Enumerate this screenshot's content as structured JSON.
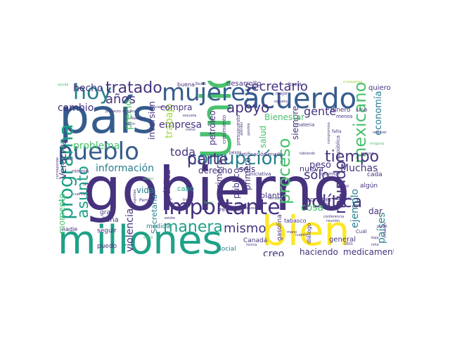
{
  "palette": {
    "purple": "#46327e",
    "darkpurple": "#482173",
    "blue": "#365c8d",
    "teal": "#277f8e",
    "green": "#1fa187",
    "lightgreen": "#4ac16d",
    "lime": "#a0da39",
    "yellow": "#fde725"
  },
  "words": [
    {
      "text": "gobierno",
      "color": "#46327e"
    },
    {
      "text": "Unidos",
      "color": "#4ac16d"
    },
    {
      "text": "país",
      "color": "#365c8d"
    },
    {
      "text": "millones",
      "color": "#1fa187"
    },
    {
      "text": "bien",
      "color": "#fde725"
    },
    {
      "text": "acuerdo",
      "color": "#365c8d"
    },
    {
      "text": "mujeres",
      "color": "#365c8d"
    },
    {
      "text": "pueblo",
      "color": "#365c8d"
    },
    {
      "text": "corrupción",
      "color": "#277f8e"
    },
    {
      "text": "importante",
      "color": "#46327e"
    },
    {
      "text": "política",
      "color": "#46327e"
    },
    {
      "text": "hoy",
      "color": "#277f8e"
    },
    {
      "text": "tratado",
      "color": "#46327e"
    },
    {
      "text": "mexicano",
      "color": "#4ac16d"
    },
    {
      "text": "secretario",
      "color": "#46327e"
    },
    {
      "text": "parte",
      "color": "#46327e"
    },
    {
      "text": "tiempo",
      "color": "#46327e"
    },
    {
      "text": "manera",
      "color": "#1fa187"
    },
    {
      "text": "mismo",
      "color": "#46327e"
    },
    {
      "text": "apoyo",
      "color": "#46327e"
    },
    {
      "text": "programa",
      "color": "#1fa187"
    },
    {
      "text": "asunto",
      "color": "#1fa187"
    },
    {
      "text": "proceso",
      "color": "#4ac16d"
    },
    {
      "text": "mundo",
      "color": "#46327e"
    },
    {
      "text": "años",
      "color": "#46327e"
    },
    {
      "text": "hecho",
      "color": "#46327e"
    },
    {
      "text": "cambio",
      "color": "#46327e"
    },
    {
      "text": "toda",
      "color": "#46327e"
    },
    {
      "text": "gente",
      "color": "#46327e"
    },
    {
      "text": "sólo",
      "color": "#46327e"
    },
    {
      "text": "empresa",
      "color": "#46327e"
    },
    {
      "text": "problema",
      "color": "#4ac16d"
    },
    {
      "text": "información",
      "color": "#277f8e"
    },
    {
      "text": "Veracruz",
      "color": "#46327e"
    },
    {
      "text": "trabajo",
      "color": "#a0da39"
    },
    {
      "text": "precio",
      "color": "#4ac16d"
    },
    {
      "text": "inversión",
      "color": "#46327e"
    },
    {
      "text": "compra",
      "color": "#46327e"
    },
    {
      "text": "desarrollo",
      "color": "#46327e"
    },
    {
      "text": "economía",
      "color": "#277f8e"
    },
    {
      "text": "cosa",
      "color": "#4ac16d"
    },
    {
      "text": "peso",
      "color": "#46327e"
    },
    {
      "text": "países",
      "color": "#277f8e"
    },
    {
      "text": "ejemplo",
      "color": "#277f8e"
    },
    {
      "text": "creo",
      "color": "#46327e"
    },
    {
      "text": "haciendo",
      "color": "#46327e"
    },
    {
      "text": "medicamento",
      "color": "#46327e"
    },
    {
      "text": "momento",
      "color": "#4ac16d"
    },
    {
      "text": "violencia",
      "color": "#46327e"
    },
    {
      "text": "vida",
      "color": "#277f8e"
    },
    {
      "text": "pública",
      "color": "#46327e"
    },
    {
      "text": "Muchas",
      "color": "#46327e"
    },
    {
      "text": "salud",
      "color": "#4ac16d"
    },
    {
      "text": "siempre",
      "color": "#46327e"
    },
    {
      "text": "nueva",
      "color": "#46327e"
    },
    {
      "text": "derecho",
      "color": "#46327e"
    },
    {
      "text": "seis",
      "color": "#46327e"
    },
    {
      "text": "petróleo",
      "color": "#46327e"
    },
    {
      "text": "Bienestar",
      "color": "#4ac16d"
    },
    {
      "text": "primera",
      "color": "#46327e"
    },
    {
      "text": "primero",
      "color": "#46327e"
    },
    {
      "text": "público",
      "color": "#46327e"
    },
    {
      "text": "dar",
      "color": "#46327e"
    },
    {
      "text": "general",
      "color": "#46327e"
    },
    {
      "text": "Secretaría",
      "color": "#277f8e"
    },
    {
      "text": "planta",
      "color": "#46327e"
    },
    {
      "text": "mañana",
      "color": "#46327e"
    },
    {
      "text": "cabo",
      "color": "#1fa187"
    },
    {
      "text": "social",
      "color": "#277f8e"
    },
    {
      "text": "puedo",
      "color": "#46327e"
    },
    {
      "text": "medida",
      "color": "#277f8e"
    },
    {
      "text": "gran",
      "color": "#46327e"
    },
    {
      "text": "seguir",
      "color": "#46327e"
    },
    {
      "text": "nadie",
      "color": "#46327e"
    },
    {
      "text": "Canadá",
      "color": "#46327e"
    },
    {
      "text": "quiero",
      "color": "#46327e"
    },
    {
      "text": "dinero",
      "color": "#46327e"
    },
    {
      "text": "gasolina",
      "color": "#46327e"
    },
    {
      "text": "diálogo",
      "color": "#46327e"
    },
    {
      "text": "cada",
      "color": "#46327e"
    },
    {
      "text": "algún",
      "color": "#46327e"
    },
    {
      "text": "conocer",
      "color": "#46327e"
    },
    {
      "text": "refinería",
      "color": "#46327e"
    },
    {
      "text": "tabasco",
      "color": "#46327e"
    },
    {
      "text": "Cuál",
      "color": "#46327e"
    },
    {
      "text": "sino",
      "color": "#46327e"
    },
    {
      "text": "menos",
      "color": "#46327e"
    },
    {
      "text": "buena",
      "color": "#46327e"
    },
    {
      "text": "buen",
      "color": "#46327e"
    },
    {
      "text": "hacia",
      "color": "#46327e"
    },
    {
      "text": "ratificación",
      "color": "#46327e"
    },
    {
      "text": "Senado",
      "color": "#46327e"
    },
    {
      "text": "iniciativa",
      "color": "#46327e"
    },
    {
      "text": "informar",
      "color": "#46327e"
    },
    {
      "text": "República",
      "color": "#46327e"
    },
    {
      "text": "materia",
      "color": "#46327e"
    },
    {
      "text": "crecimiento",
      "color": "#46327e"
    },
    {
      "text": "presupuesto",
      "color": "#46327e"
    },
    {
      "text": "Pemex",
      "color": "#46327e"
    },
    {
      "text": "pesos",
      "color": "#46327e"
    },
    {
      "text": "sector",
      "color": "#46327e"
    },
    {
      "text": "después",
      "color": "#46327e"
    },
    {
      "text": "ningún",
      "color": "#46327e"
    },
    {
      "text": "mejor",
      "color": "#46327e"
    },
    {
      "text": "falta",
      "color": "#46327e"
    },
    {
      "text": "litro",
      "color": "#46327e"
    },
    {
      "text": "ayuda",
      "color": "#4ac16d"
    },
    {
      "text": "Nacional",
      "color": "#46327e"
    },
    {
      "text": "escuela",
      "color": "#46327e"
    },
    {
      "text": "poder",
      "color": "#4ac16d"
    },
    {
      "text": "elegir",
      "color": "#4ac16d"
    },
    {
      "text": "trabajando",
      "color": "#a0da39"
    },
    {
      "text": "resolver",
      "color": "#46327e"
    },
    {
      "text": "punto",
      "color": "#46327e"
    },
    {
      "text": "situación",
      "color": "#46327e"
    },
    {
      "text": "ninguna",
      "color": "#4ac16d"
    },
    {
      "text": "compromiso",
      "color": "#46327e"
    },
    {
      "text": "trata",
      "color": "#46327e"
    },
    {
      "text": "viene",
      "color": "#46327e"
    },
    {
      "text": "reunión",
      "color": "#46327e"
    },
    {
      "text": "conferencia",
      "color": "#46327e"
    },
    {
      "text": "respeto",
      "color": "#46327e"
    },
    {
      "text": "dólares",
      "color": "#46327e"
    },
    {
      "text": "temas",
      "color": "#46327e"
    },
    {
      "text": "nunca",
      "color": "#46327e"
    },
    {
      "text": "aquí",
      "color": "#46327e"
    },
    {
      "text": "todo",
      "color": "#46327e"
    },
    {
      "text": "lado",
      "color": "#46327e"
    },
    {
      "text": "cuenta",
      "color": "#46327e"
    },
    {
      "text": "Hacienda",
      "color": "#46327e"
    },
    {
      "text": "semana",
      "color": "#46327e"
    },
    {
      "text": "proyecto",
      "color": "#46327e"
    },
    {
      "text": "decir",
      "color": "#46327e"
    },
    {
      "text": "existe",
      "color": "#46327e"
    },
    {
      "text": "tablando",
      "color": "#46327e"
    },
    {
      "text": "incluso",
      "color": "#46327e"
    },
    {
      "text": "baja",
      "color": "#46327e"
    },
    {
      "text": "niño",
      "color": "#46327e"
    },
    {
      "text": "favor",
      "color": "#4ac16d"
    },
    {
      "text": "sido",
      "color": "#46327e"
    },
    {
      "text": "mano",
      "color": "#46327e"
    },
    {
      "text": "cuanto",
      "color": "#46327e"
    },
    {
      "text": "atender",
      "color": "#46327e"
    },
    {
      "text": "posible",
      "color": "#46327e"
    },
    {
      "text": "preguntas",
      "color": "#46327e"
    },
    {
      "text": "corresponde",
      "color": "#46327e"
    }
  ]
}
